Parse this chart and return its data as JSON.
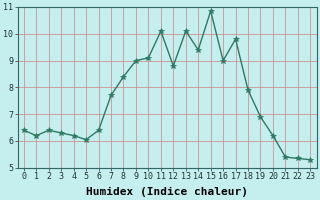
{
  "x": [
    0,
    1,
    2,
    3,
    4,
    5,
    6,
    7,
    8,
    9,
    10,
    11,
    12,
    13,
    14,
    15,
    16,
    17,
    18,
    19,
    20,
    21,
    22,
    23
  ],
  "y": [
    6.4,
    6.2,
    6.4,
    6.3,
    6.2,
    6.05,
    6.4,
    7.7,
    8.4,
    9.0,
    9.1,
    10.1,
    8.8,
    10.1,
    9.4,
    10.85,
    9.0,
    9.8,
    7.9,
    6.9,
    6.2,
    5.4,
    5.35,
    5.3
  ],
  "line_color": "#2d7a62",
  "marker": "*",
  "marker_color": "#2d7a62",
  "marker_size": 4,
  "background_color": "#c5eeee",
  "grid_color": "#d08080",
  "xlabel": "Humidex (Indice chaleur)",
  "xlabel_fontsize": 8,
  "xlabel_bold": true,
  "ylim": [
    5,
    11
  ],
  "xlim": [
    -0.5,
    23.5
  ],
  "yticks": [
    5,
    6,
    7,
    8,
    9,
    10,
    11
  ],
  "xticks": [
    0,
    1,
    2,
    3,
    4,
    5,
    6,
    7,
    8,
    9,
    10,
    11,
    12,
    13,
    14,
    15,
    16,
    17,
    18,
    19,
    20,
    21,
    22,
    23
  ],
  "tick_fontsize": 6,
  "line_width": 1.0
}
